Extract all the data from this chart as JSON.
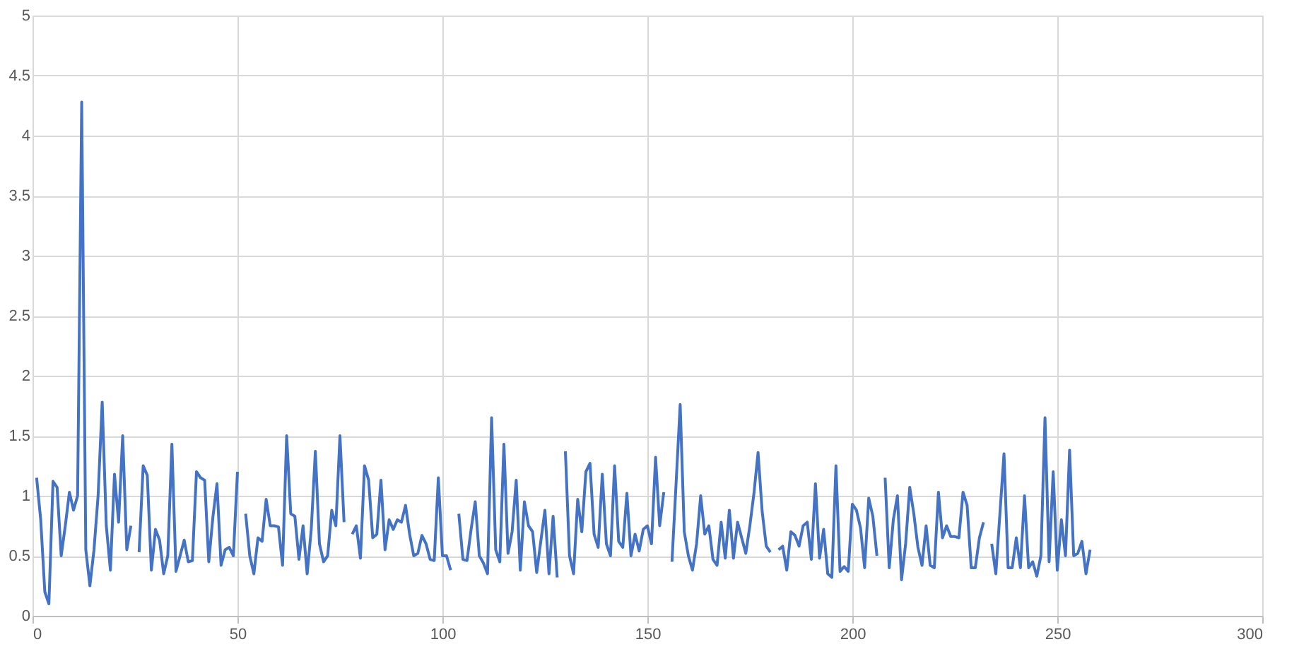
{
  "chart_data": {
    "type": "line",
    "color": "#4472c4",
    "grid": true,
    "marker": "none",
    "line_style": "solid",
    "xlim": [
      0,
      300
    ],
    "xticks": [
      0,
      50,
      100,
      150,
      200,
      250,
      300
    ],
    "ylim": [
      0,
      5
    ],
    "yticks": [
      0,
      0.5,
      1,
      1.5,
      2,
      2.5,
      3,
      3.5,
      4,
      4.5,
      5
    ],
    "x": [
      1,
      2,
      3,
      4,
      5,
      6,
      7,
      8,
      9,
      10,
      11,
      12,
      13,
      14,
      15,
      16,
      17,
      18,
      19,
      20,
      21,
      22,
      23,
      24,
      25,
      26,
      27,
      28,
      29,
      30,
      31,
      32,
      33,
      34,
      35,
      36,
      37,
      38,
      39,
      40,
      41,
      42,
      43,
      44,
      45,
      46,
      47,
      48,
      49,
      50,
      51,
      52,
      53,
      54,
      55,
      56,
      57,
      58,
      59,
      60,
      61,
      62,
      63,
      64,
      65,
      66,
      67,
      68,
      69,
      70,
      71,
      72,
      73,
      74,
      75,
      76,
      77,
      78,
      79,
      80,
      81,
      82,
      83,
      84,
      85,
      86,
      87,
      88,
      89,
      90,
      91,
      92,
      93,
      94,
      95,
      96,
      97,
      98,
      99,
      100,
      101,
      102,
      103,
      104,
      105,
      106,
      107,
      108,
      109,
      110,
      111,
      112,
      113,
      114,
      115,
      116,
      117,
      118,
      119,
      120,
      121,
      122,
      123,
      124,
      125,
      126,
      127,
      128,
      129,
      130,
      131,
      132,
      133,
      134,
      135,
      136,
      137,
      138,
      139,
      140,
      141,
      142,
      143,
      144,
      145,
      146,
      147,
      148,
      149,
      150,
      151,
      152,
      153,
      154,
      155,
      156,
      157,
      158,
      159,
      160,
      161,
      162,
      163,
      164,
      165,
      166,
      167,
      168,
      169,
      170,
      171,
      172,
      173,
      174,
      175,
      176,
      177,
      178,
      179,
      180,
      181,
      182,
      183,
      184,
      185,
      186,
      187,
      188,
      189,
      190,
      191,
      192,
      193,
      194,
      195,
      196,
      197,
      198,
      199,
      200,
      201,
      202,
      203,
      204,
      205,
      206,
      207,
      208,
      209,
      210,
      211,
      212,
      213,
      214,
      215,
      216,
      217,
      218,
      219,
      220,
      221,
      222,
      223,
      224,
      225,
      226,
      227,
      228,
      229,
      230,
      231,
      232,
      233,
      234,
      235,
      236,
      237,
      238,
      239,
      240,
      241,
      242,
      243,
      244,
      245,
      246,
      247,
      248,
      249,
      250,
      251,
      252,
      253,
      254,
      255,
      256,
      257,
      258
    ],
    "values": [
      1.15,
      0.8,
      0.2,
      0.1,
      1.12,
      1.07,
      0.5,
      0.75,
      1.03,
      0.88,
      1.0,
      4.28,
      0.55,
      0.25,
      0.55,
      1.0,
      1.78,
      0.75,
      0.38,
      1.18,
      0.78,
      1.5,
      0.55,
      0.75,
      null,
      0.53,
      1.25,
      1.17,
      0.38,
      0.72,
      0.63,
      0.35,
      0.5,
      1.43,
      0.37,
      0.5,
      0.63,
      0.45,
      0.46,
      1.2,
      1.15,
      1.13,
      0.45,
      0.82,
      1.1,
      0.42,
      0.55,
      0.57,
      0.5,
      1.2,
      null,
      0.85,
      0.5,
      0.35,
      0.65,
      0.62,
      0.97,
      0.75,
      0.75,
      0.74,
      0.42,
      1.5,
      0.85,
      0.83,
      0.47,
      0.75,
      0.35,
      0.72,
      1.37,
      0.6,
      0.45,
      0.5,
      0.88,
      0.75,
      1.5,
      0.78,
      null,
      0.68,
      0.75,
      0.48,
      1.25,
      1.13,
      0.65,
      0.68,
      1.13,
      0.55,
      0.8,
      0.72,
      0.8,
      0.78,
      0.92,
      0.68,
      0.5,
      0.52,
      0.67,
      0.6,
      0.47,
      0.46,
      1.15,
      0.5,
      0.5,
      0.38,
      null,
      0.85,
      0.47,
      0.46,
      0.72,
      0.95,
      0.5,
      0.44,
      0.35,
      1.65,
      0.55,
      0.45,
      1.43,
      0.52,
      0.7,
      1.13,
      0.38,
      0.95,
      0.75,
      0.7,
      0.36,
      0.62,
      0.88,
      0.35,
      0.83,
      0.32,
      null,
      1.37,
      0.5,
      0.35,
      0.97,
      0.7,
      1.2,
      1.27,
      0.68,
      0.57,
      1.18,
      0.6,
      0.5,
      1.25,
      0.62,
      0.57,
      1.02,
      0.5,
      0.68,
      0.54,
      0.72,
      0.75,
      0.6,
      1.32,
      0.75,
      1.03,
      null,
      0.45,
      1.1,
      1.76,
      0.7,
      0.5,
      0.38,
      0.6,
      1.0,
      0.68,
      0.75,
      0.47,
      0.42,
      0.78,
      0.48,
      0.88,
      0.48,
      0.78,
      0.65,
      0.52,
      0.75,
      1.02,
      1.36,
      0.87,
      0.58,
      0.53,
      null,
      0.55,
      0.58,
      0.38,
      0.7,
      0.67,
      0.58,
      0.75,
      0.78,
      0.47,
      1.1,
      0.48,
      0.72,
      0.35,
      0.32,
      1.25,
      0.37,
      0.41,
      0.37,
      0.93,
      0.88,
      0.73,
      0.4,
      0.98,
      0.83,
      0.5,
      null,
      1.15,
      0.4,
      0.8,
      1.0,
      0.3,
      0.6,
      1.07,
      0.85,
      0.57,
      0.42,
      0.75,
      0.42,
      0.4,
      1.03,
      0.65,
      0.75,
      0.66,
      0.66,
      0.65,
      1.03,
      0.92,
      0.4,
      0.4,
      0.65,
      0.78,
      null,
      0.6,
      0.35,
      0.85,
      1.35,
      0.4,
      0.4,
      0.65,
      0.4,
      1.0,
      0.4,
      0.45,
      0.33,
      0.5,
      1.65,
      0.45,
      1.2,
      0.38,
      0.8,
      0.5,
      1.38,
      0.5,
      0.52,
      0.62,
      0.35,
      0.55
    ]
  }
}
